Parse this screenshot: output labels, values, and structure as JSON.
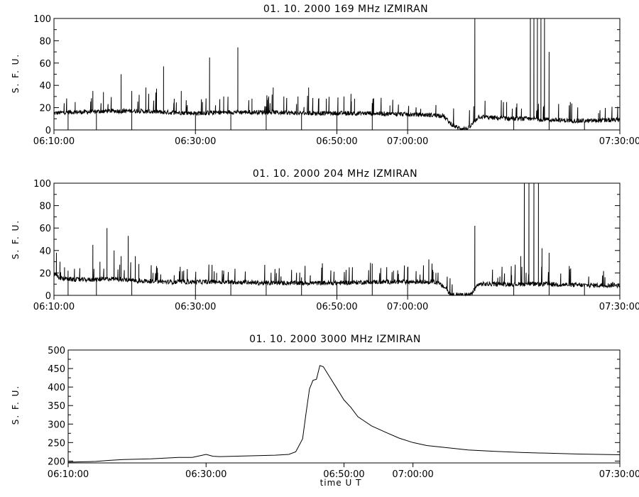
{
  "chart_data": [
    {
      "type": "line",
      "title": "01.  10.  2000    169  MHz    IZMIRAN",
      "ylabel": "S. F. U.",
      "xlabel": "",
      "xlim": [
        "06:10:00",
        "07:30:00"
      ],
      "ylim": [
        0,
        100
      ],
      "x_ticks": [
        "06:10:00",
        "06:30:00",
        "06:50:00",
        "07:00:00",
        "07:30:00"
      ],
      "y_ticks": [
        "0",
        "20",
        "40",
        "60",
        "80",
        "100"
      ],
      "series": [
        {
          "line_color": "#000000",
          "keypoints": [
            [
              "06:10:00",
              15
            ],
            [
              "06:12:00",
              16
            ],
            [
              "06:14:00",
              16
            ],
            [
              "06:18:00",
              17
            ],
            [
              "06:22:00",
              17
            ],
            [
              "06:25:00",
              16
            ],
            [
              "06:30:00",
              15
            ],
            [
              "06:35:00",
              16
            ],
            [
              "06:40:00",
              16
            ],
            [
              "06:45:00",
              15
            ],
            [
              "06:50:00",
              15
            ],
            [
              "06:55:00",
              15
            ],
            [
              "07:00:00",
              14
            ],
            [
              "07:05:00",
              13
            ],
            [
              "07:06:00",
              6
            ],
            [
              "07:07:00",
              2
            ],
            [
              "07:08:30",
              1
            ],
            [
              "07:09:00",
              4
            ],
            [
              "07:10:00",
              12
            ],
            [
              "07:12:00",
              11
            ],
            [
              "07:15:00",
              10
            ],
            [
              "07:18:00",
              10
            ],
            [
              "07:20:00",
              9
            ],
            [
              "07:25:00",
              8
            ],
            [
              "07:30:00",
              9
            ]
          ],
          "spikes": [
            [
              "06:13:00",
              25
            ],
            [
              "06:15:30",
              35
            ],
            [
              "06:17:00",
              34
            ],
            [
              "06:19:30",
              50
            ],
            [
              "06:21:00",
              35
            ],
            [
              "06:23:00",
              38
            ],
            [
              "06:24:30",
              37
            ],
            [
              "06:25:30",
              57
            ],
            [
              "06:27:00",
              28
            ],
            [
              "06:28:00",
              35
            ],
            [
              "06:31:00",
              25
            ],
            [
              "06:32:00",
              65
            ],
            [
              "06:34:00",
              30
            ],
            [
              "06:36:00",
              74
            ],
            [
              "06:38:00",
              28
            ],
            [
              "06:41:00",
              38
            ],
            [
              "06:42:30",
              30
            ],
            [
              "06:44:30",
              30
            ],
            [
              "06:46:00",
              38
            ],
            [
              "06:48:30",
              28
            ],
            [
              "06:51:00",
              30
            ],
            [
              "06:52:30",
              28
            ],
            [
              "06:55:00",
              24
            ],
            [
              "06:57:30",
              22
            ],
            [
              "07:09:30",
              100
            ],
            [
              "07:14:00",
              25
            ],
            [
              "07:17:20",
              100
            ],
            [
              "07:17:50",
              100
            ],
            [
              "07:18:20",
              100
            ],
            [
              "07:18:50",
              100
            ],
            [
              "07:19:20",
              100
            ],
            [
              "07:20:00",
              70
            ],
            [
              "07:23:00",
              25
            ],
            [
              "07:27:00",
              15
            ]
          ],
          "dips": [
            "06:12:00",
            "06:16:00",
            "06:21:00",
            "06:30:00",
            "06:35:00",
            "06:40:00",
            "06:45:00",
            "06:50:00",
            "06:55:00",
            "07:00:00",
            "07:15:00",
            "07:20:00",
            "07:25:00"
          ]
        }
      ]
    },
    {
      "type": "line",
      "title": "01.  10.  2000    204  MHz    IZMIRAN",
      "ylabel": "S. F. U.",
      "xlabel": "",
      "xlim": [
        "06:10:00",
        "07:30:00"
      ],
      "ylim": [
        0,
        100
      ],
      "x_ticks": [
        "06:10:00",
        "06:30:00",
        "06:50:00",
        "07:00:00",
        "07:30:00"
      ],
      "y_ticks": [
        "0",
        "20",
        "40",
        "60",
        "80",
        "100"
      ],
      "series": [
        {
          "line_color": "#000000",
          "keypoints": [
            [
              "06:10:00",
              20
            ],
            [
              "06:11:00",
              15
            ],
            [
              "06:13:00",
              14
            ],
            [
              "06:16:00",
              14
            ],
            [
              "06:18:00",
              15
            ],
            [
              "06:22:00",
              13
            ],
            [
              "06:26:00",
              12
            ],
            [
              "06:30:00",
              12
            ],
            [
              "06:35:00",
              12
            ],
            [
              "06:40:00",
              11
            ],
            [
              "06:45:00",
              11
            ],
            [
              "06:50:00",
              11
            ],
            [
              "06:55:00",
              12
            ],
            [
              "07:00:00",
              12
            ],
            [
              "07:04:00",
              12
            ],
            [
              "07:05:30",
              6
            ],
            [
              "07:06:00",
              1
            ],
            [
              "07:08:00",
              0
            ],
            [
              "07:09:00",
              1
            ],
            [
              "07:10:00",
              10
            ],
            [
              "07:13:00",
              10
            ],
            [
              "07:16:00",
              10
            ],
            [
              "07:20:00",
              10
            ],
            [
              "07:25:00",
              9
            ],
            [
              "07:30:00",
              9
            ]
          ],
          "spikes": [
            [
              "06:10:20",
              38
            ],
            [
              "06:10:50",
              30
            ],
            [
              "06:11:30",
              25
            ],
            [
              "06:12:00",
              22
            ],
            [
              "06:15:30",
              45
            ],
            [
              "06:16:30",
              30
            ],
            [
              "06:17:30",
              60
            ],
            [
              "06:18:30",
              40
            ],
            [
              "06:19:30",
              35
            ],
            [
              "06:20:30",
              53
            ],
            [
              "06:21:30",
              35
            ],
            [
              "06:22:00",
              28
            ],
            [
              "06:24:00",
              20
            ],
            [
              "06:27:00",
              18
            ],
            [
              "06:30:00",
              16
            ],
            [
              "06:33:00",
              20
            ],
            [
              "06:34:00",
              22
            ],
            [
              "06:38:00",
              14
            ],
            [
              "06:45:00",
              16
            ],
            [
              "06:58:00",
              22
            ],
            [
              "07:00:00",
              25
            ],
            [
              "07:03:00",
              32
            ],
            [
              "07:04:00",
              20
            ],
            [
              "07:09:30",
              62
            ],
            [
              "07:16:00",
              35
            ],
            [
              "07:16:30",
              100
            ],
            [
              "07:17:10",
              100
            ],
            [
              "07:17:50",
              100
            ],
            [
              "07:18:30",
              100
            ],
            [
              "07:19:00",
              42
            ],
            [
              "07:20:00",
              38
            ],
            [
              "07:29:00",
              12
            ]
          ],
          "dips": [
            "06:12:00",
            "06:16:00",
            "06:21:00",
            "06:30:00",
            "06:35:00",
            "06:40:00",
            "06:45:00",
            "06:50:00",
            "06:55:00",
            "07:00:00",
            "07:15:00",
            "07:20:00",
            "07:25:00"
          ]
        }
      ]
    },
    {
      "type": "line",
      "title": "01.  10.  2000     3000  MHz     IZMIRAN",
      "ylabel": "S. F. U.",
      "xlabel": "time   U T",
      "xlim": [
        "06:10:00",
        "07:30:00"
      ],
      "ylim": [
        195,
        500
      ],
      "x_ticks": [
        "06:10:00",
        "06:30:00",
        "06:50:00",
        "07:00:00",
        "07:30:00"
      ],
      "y_ticks": [
        "200",
        "250",
        "300",
        "350",
        "400",
        "450",
        "500"
      ],
      "series": [
        {
          "line_color": "#000000",
          "points": [
            [
              "06:10:00",
              197
            ],
            [
              "06:12:00",
              198
            ],
            [
              "06:14:00",
              199
            ],
            [
              "06:16:00",
              202
            ],
            [
              "06:18:00",
              204
            ],
            [
              "06:20:00",
              205
            ],
            [
              "06:22:00",
              206
            ],
            [
              "06:24:00",
              208
            ],
            [
              "06:26:00",
              210
            ],
            [
              "06:28:00",
              210
            ],
            [
              "06:29:00",
              214
            ],
            [
              "06:30:00",
              218
            ],
            [
              "06:31:00",
              213
            ],
            [
              "06:32:00",
              212
            ],
            [
              "06:34:00",
              213
            ],
            [
              "06:36:00",
              214
            ],
            [
              "06:38:00",
              215
            ],
            [
              "06:40:00",
              216
            ],
            [
              "06:42:00",
              218
            ],
            [
              "06:43:00",
              225
            ],
            [
              "06:44:00",
              260
            ],
            [
              "06:44:30",
              330
            ],
            [
              "06:45:00",
              395
            ],
            [
              "06:45:30",
              418
            ],
            [
              "06:46:00",
              421
            ],
            [
              "06:46:30",
              458
            ],
            [
              "06:47:00",
              455
            ],
            [
              "06:47:30",
              440
            ],
            [
              "06:48:00",
              425
            ],
            [
              "06:49:00",
              395
            ],
            [
              "06:50:00",
              365
            ],
            [
              "06:51:00",
              345
            ],
            [
              "06:52:00",
              320
            ],
            [
              "06:54:00",
              295
            ],
            [
              "06:56:00",
              278
            ],
            [
              "06:58:00",
              262
            ],
            [
              "07:00:00",
              250
            ],
            [
              "07:02:00",
              242
            ],
            [
              "07:05:00",
              236
            ],
            [
              "07:08:00",
              230
            ],
            [
              "07:12:00",
              226
            ],
            [
              "07:16:00",
              223
            ],
            [
              "07:20:00",
              221
            ],
            [
              "07:24:00",
              219
            ],
            [
              "07:30:00",
              217
            ]
          ]
        }
      ]
    }
  ]
}
